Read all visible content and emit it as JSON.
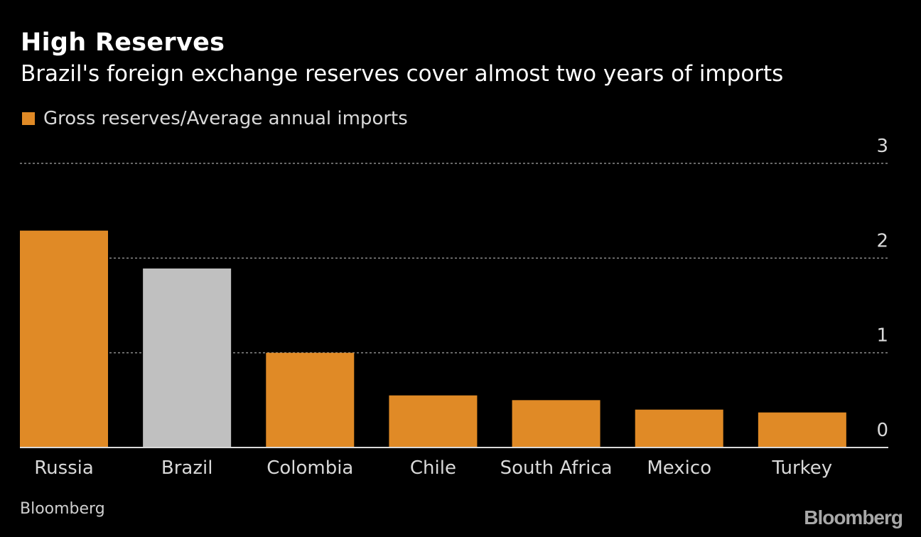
{
  "header": {
    "title": "High Reserves",
    "subtitle": "Brazil's foreign exchange reserves cover almost two years of imports"
  },
  "legend": {
    "label": "Gross reserves/Average annual imports",
    "color": "#e08a26"
  },
  "footer": {
    "source": "Bloomberg",
    "logo": "Bloomberg"
  },
  "colors": {
    "accent": "#e08a26",
    "highlight": "#c0c0c0",
    "grid": "#8a8a8a",
    "axis_text": "#d9d9d9",
    "background": "#000000"
  },
  "chart_data": {
    "type": "bar",
    "title": "High Reserves",
    "subtitle": "Brazil's foreign exchange reserves cover almost two years of imports",
    "categories": [
      "Russia",
      "Brazil",
      "Colombia",
      "Chile",
      "South Africa",
      "Mexico",
      "Turkey"
    ],
    "series": [
      {
        "name": "Gross reserves/Average annual imports",
        "values": [
          2.29,
          1.89,
          1.0,
          0.55,
          0.5,
          0.4,
          0.37
        ]
      }
    ],
    "highlight_category": "Brazil",
    "ylim": [
      0,
      3
    ],
    "yticks": [
      0,
      1,
      2,
      3
    ],
    "y_axis_position": "right",
    "grid": true,
    "legend": "top-left",
    "xlabel": "",
    "ylabel": ""
  }
}
